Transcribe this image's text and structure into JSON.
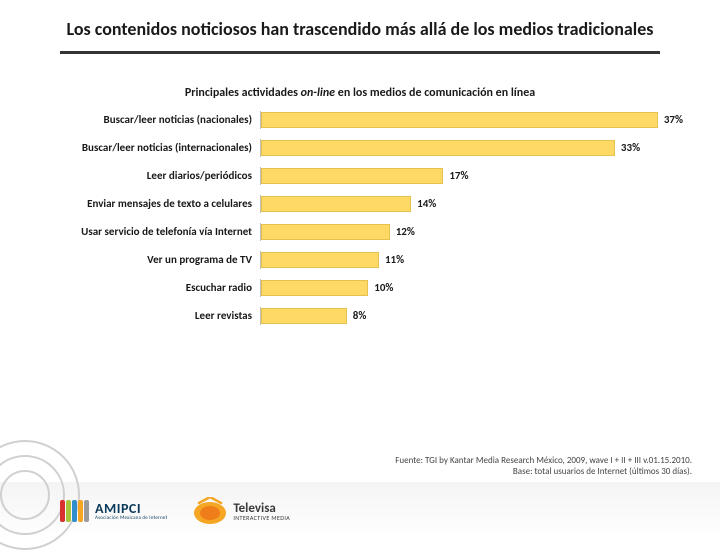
{
  "title": "Los contenidos noticiosos han trascendido más allá de los medios tradicionales",
  "subtitle_pre": "Principales actividades ",
  "subtitle_em": "on-line",
  "subtitle_post": " en los medios de comunicación en línea",
  "chart": {
    "type": "bar-horizontal",
    "xmax": 40,
    "bar_color": "#ffd966",
    "bar_border": "#e6c24d",
    "track_border": "#bfbfbf",
    "label_fontsize": 11,
    "value_fontsize": 11,
    "rows": [
      {
        "label": "Buscar/leer noticias (nacionales)",
        "value": 37,
        "text": "37%"
      },
      {
        "label": "Buscar/leer noticias (internacionales)",
        "value": 33,
        "text": "33%"
      },
      {
        "label": "Leer diarios/periódicos",
        "value": 17,
        "text": "17%"
      },
      {
        "label": "Enviar mensajes de texto a celulares",
        "value": 14,
        "text": "14%"
      },
      {
        "label": "Usar servicio de telefonía vía Internet",
        "value": 12,
        "text": "12%"
      },
      {
        "label": "Ver un programa de TV",
        "value": 11,
        "text": "11%"
      },
      {
        "label": "Escuchar radio",
        "value": 10,
        "text": "10%"
      },
      {
        "label": "Leer revistas",
        "value": 8,
        "text": "8%"
      }
    ]
  },
  "source_line1": "Fuente: TGI by Kantar Media Research México, 2009, wave I + II + III v.01.15.2010.",
  "source_line2": "Base: total usuarios de Internet (últimos 30 días).",
  "logos": {
    "amipci": {
      "name": "AMIPCI",
      "sub": "Asociación Mexicana de Internet",
      "bar_colors": [
        "#d9322e",
        "#a7c539",
        "#2f8ecb",
        "#f5a623",
        "#9b9b9b"
      ]
    },
    "televisa": {
      "name": "Televisa",
      "sub": "INTERACTIVE MEDIA",
      "outer": "#f5a623",
      "inner": "#ef7d1a"
    }
  },
  "bg_circle_color": "#d0d0d0"
}
